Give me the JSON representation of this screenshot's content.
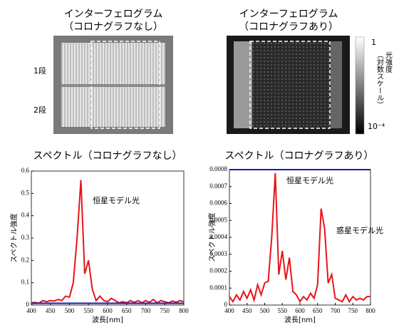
{
  "images": [
    {
      "title": [
        "インターフェログラム",
        "（コロナグラフなし）"
      ],
      "row_labels": [
        "1段",
        "2段"
      ]
    },
    {
      "title": [
        "インターフェログラム",
        "（コロナグラフあり）"
      ],
      "colorbar_ticks": [
        "1",
        "10⁻⁴"
      ],
      "colorbar_label": [
        "光強度",
        "（対数スケール）"
      ]
    }
  ],
  "chart_data": [
    {
      "type": "line",
      "title": "スペクトル（コロナグラフなし）",
      "xlabel": "波長[nm]",
      "ylabel": "スペクトル強度",
      "annotations": [
        "恒星モデル光"
      ],
      "xlim": [
        400,
        800
      ],
      "xticks": [
        400,
        450,
        500,
        550,
        600,
        650,
        700,
        750,
        800
      ],
      "ylim": [
        0,
        0.6
      ],
      "yticks": [
        0,
        0.1,
        0.2,
        0.3,
        0.4,
        0.5,
        0.6
      ],
      "series": [
        {
          "color": "#e8141a",
          "x": [
            400,
            410,
            420,
            430,
            440,
            450,
            460,
            470,
            480,
            490,
            500,
            510,
            520,
            530,
            540,
            550,
            560,
            570,
            580,
            590,
            600,
            610,
            620,
            630,
            640,
            650,
            660,
            670,
            680,
            690,
            700,
            710,
            720,
            730,
            740,
            750,
            760,
            770,
            780,
            790,
            800
          ],
          "values": [
            0.01,
            0.012,
            0.008,
            0.02,
            0.015,
            0.02,
            0.018,
            0.025,
            0.02,
            0.04,
            0.035,
            0.1,
            0.3,
            0.56,
            0.14,
            0.2,
            0.07,
            0.02,
            0.04,
            0.02,
            0.015,
            0.03,
            0.02,
            0.01,
            0.015,
            0.01,
            0.02,
            0.012,
            0.02,
            0.01,
            0.02,
            0.012,
            0.025,
            0.01,
            0.02,
            0.015,
            0.01,
            0.018,
            0.012,
            0.02,
            0.015
          ]
        },
        {
          "color": "#1a1aa8",
          "x": [
            400,
            800
          ],
          "values": [
            0.008,
            0.008
          ]
        }
      ]
    },
    {
      "type": "line",
      "title": "スペクトル（コロナグラフあり）",
      "xlabel": "波長[nm]",
      "ylabel": "スペクトル強度",
      "annotations": [
        "恒星モデル光",
        "惑星モデル光"
      ],
      "xlim": [
        400,
        800
      ],
      "xticks": [
        400,
        450,
        500,
        550,
        600,
        650,
        700,
        750,
        800
      ],
      "ylim": [
        0,
        0.0008
      ],
      "yticks": [
        0,
        0.0001,
        0.0002,
        0.0003,
        0.0004,
        0.0005,
        0.0006,
        0.0007,
        0.0008
      ],
      "series": [
        {
          "color": "#e8141a",
          "x": [
            400,
            410,
            420,
            430,
            440,
            450,
            460,
            470,
            480,
            490,
            500,
            510,
            520,
            530,
            540,
            550,
            560,
            570,
            580,
            590,
            600,
            610,
            620,
            630,
            640,
            650,
            660,
            670,
            680,
            690,
            700,
            710,
            720,
            730,
            740,
            750,
            760,
            770,
            780,
            790,
            800
          ],
          "values": [
            5e-05,
            2e-05,
            6e-05,
            3e-05,
            8e-05,
            4e-05,
            9e-05,
            3e-05,
            0.00012,
            6e-05,
            0.00013,
            0.00014,
            0.0004,
            0.00078,
            0.00018,
            0.00032,
            0.00015,
            0.00028,
            8e-05,
            6e-05,
            2e-05,
            5e-05,
            3e-05,
            7e-05,
            4e-05,
            0.00012,
            0.00057,
            0.00045,
            0.00013,
            0.00018,
            4e-05,
            3e-05,
            2e-05,
            6e-05,
            2e-05,
            5e-05,
            3e-05,
            4e-05,
            3e-05,
            5e-05,
            5e-05
          ]
        },
        {
          "color": "#1a1aa8",
          "x": [
            400,
            800
          ],
          "values": [
            0.0008,
            0.0008
          ]
        }
      ]
    }
  ]
}
